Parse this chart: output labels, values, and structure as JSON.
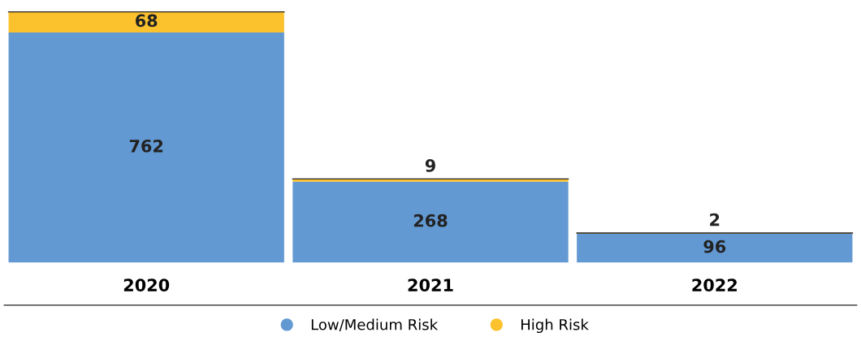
{
  "chart_data": {
    "type": "bar",
    "stacked": true,
    "categories": [
      "2020",
      "2021",
      "2022"
    ],
    "series": [
      {
        "name": "Low/Medium Risk",
        "color": "#6399d2",
        "values": [
          762,
          268,
          96
        ]
      },
      {
        "name": "High Risk",
        "color": "#fcc22d",
        "values": [
          68,
          9,
          2
        ]
      }
    ],
    "data_labels": true,
    "legend": "bottom",
    "grid": false,
    "tick_labels": "x"
  }
}
